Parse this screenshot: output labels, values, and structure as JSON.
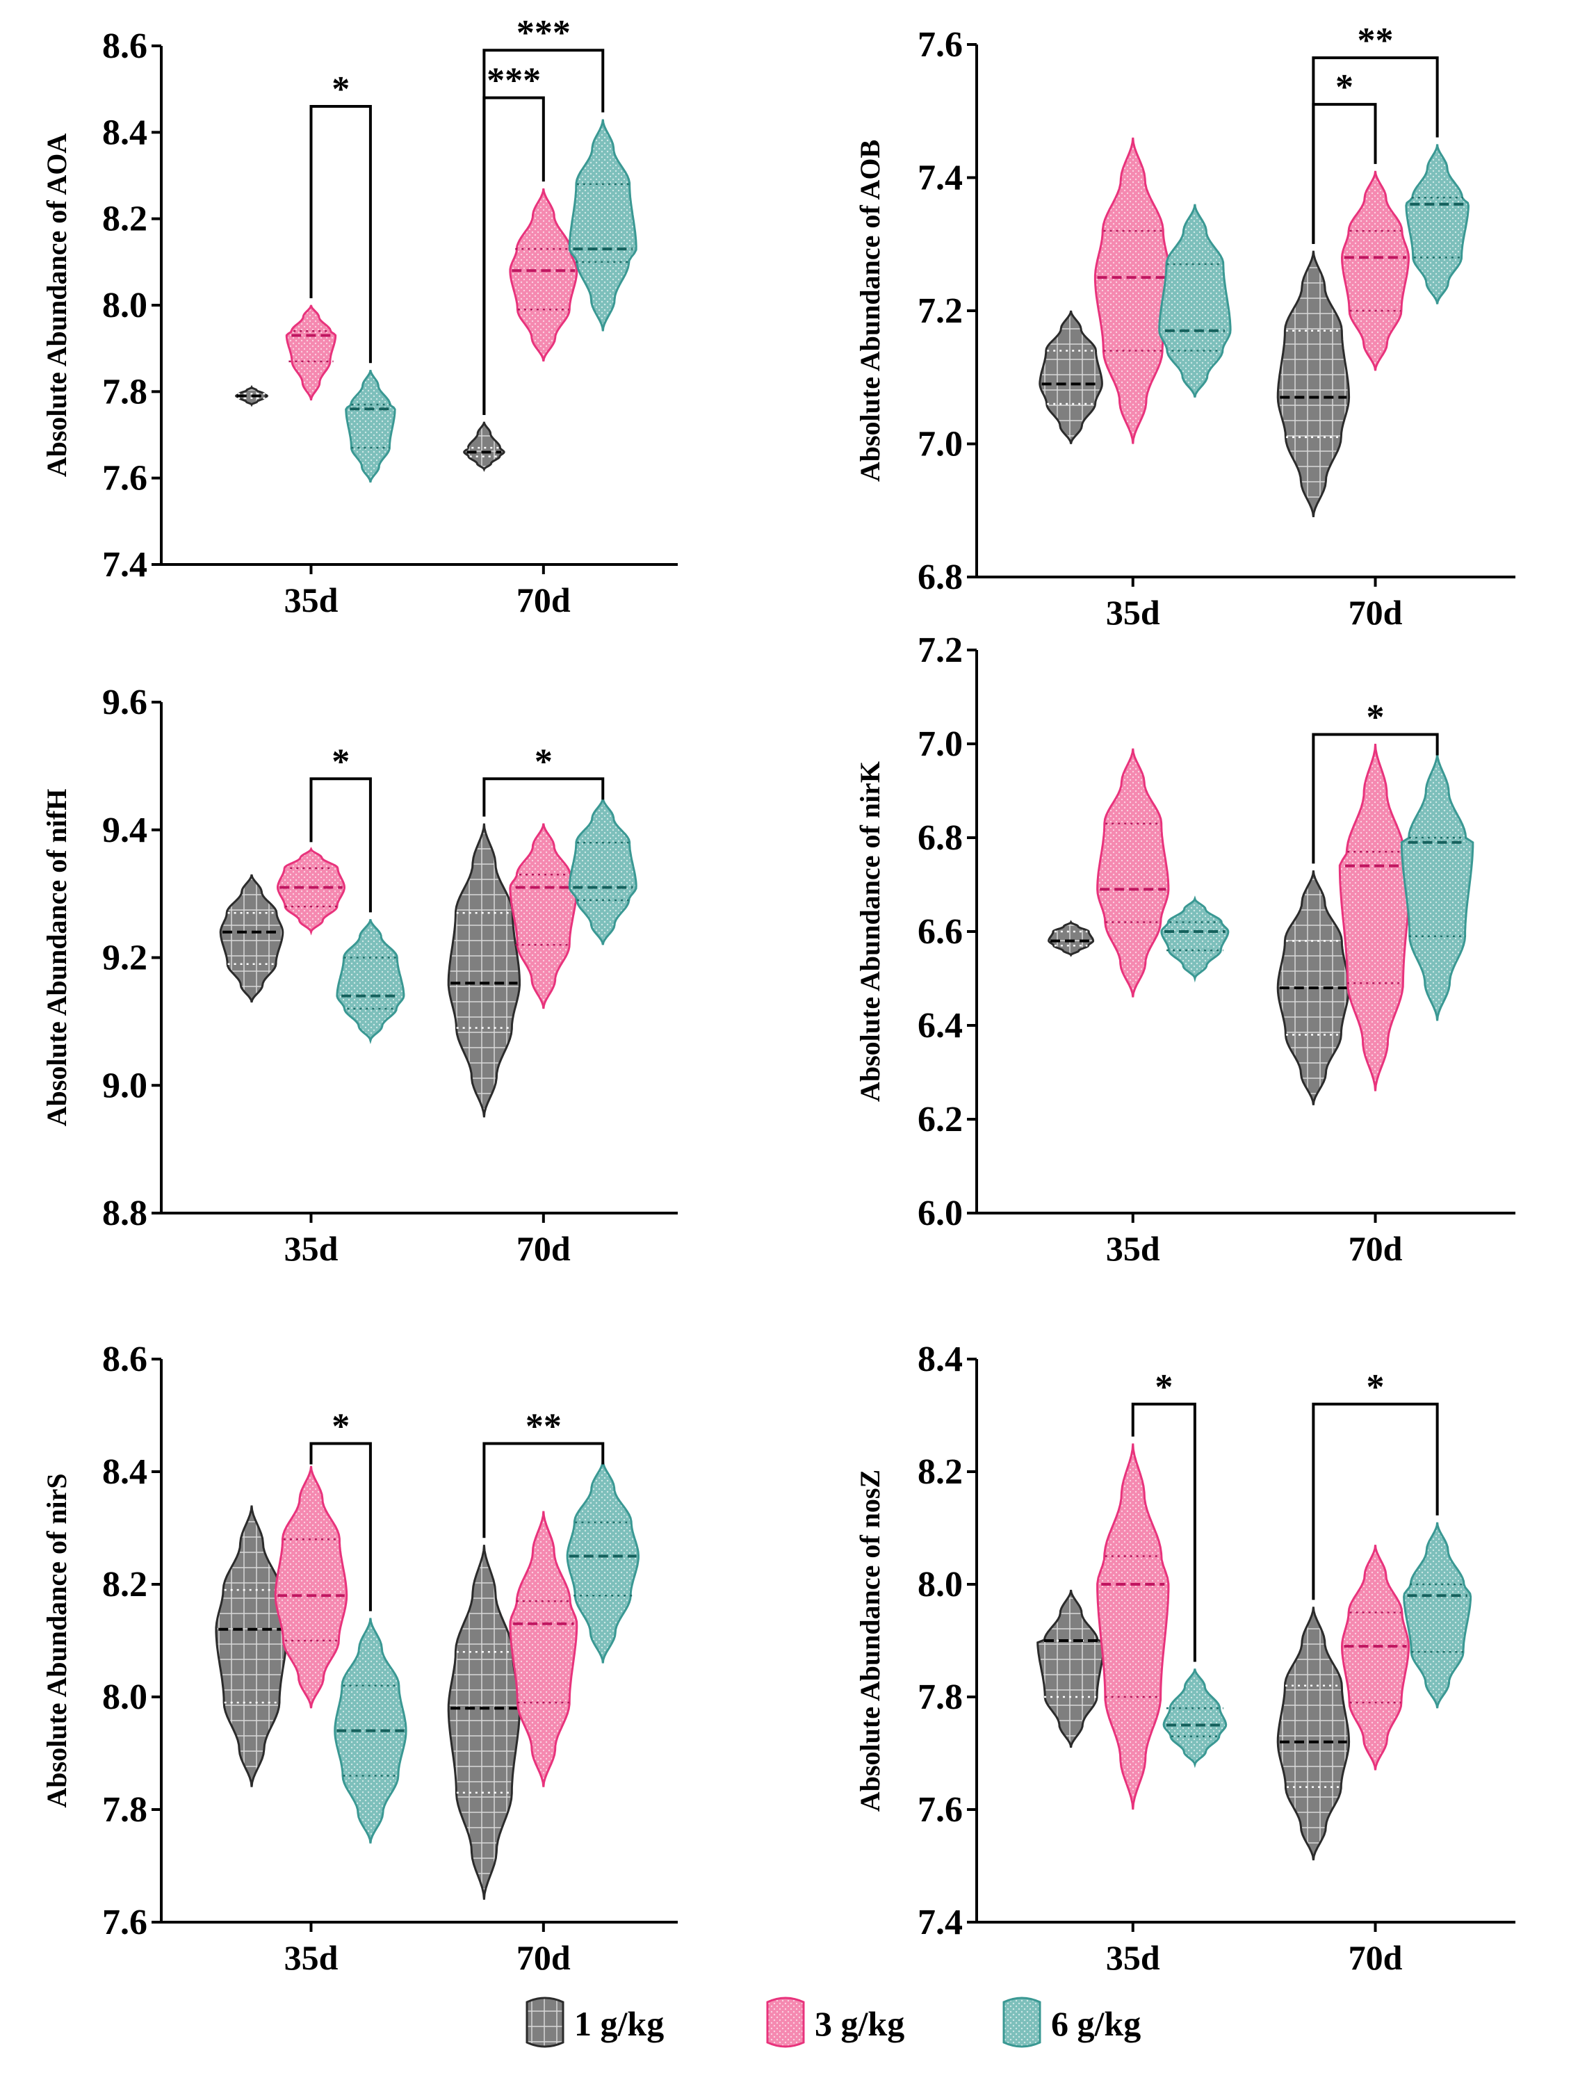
{
  "figure": {
    "legend": {
      "entries": [
        {
          "label": "1 g/kg",
          "fill": "#7f7f7f",
          "stroke": "#2b2b2b"
        },
        {
          "label": "3 g/kg",
          "fill": "#f589b0",
          "stroke": "#e8337c"
        },
        {
          "label": "6 g/kg",
          "fill": "#7dbfbb",
          "stroke": "#3a9893"
        }
      ]
    }
  },
  "chart_data": [
    {
      "type": "violin",
      "id": "aoa",
      "ylabel": "Absolute Abundance of AOA",
      "ylim": [
        7.4,
        8.6
      ],
      "yticks": [
        "7.4",
        "7.6",
        "7.8",
        "8.0",
        "8.2",
        "8.4",
        "8.6"
      ],
      "categories": [
        "35d",
        "70d"
      ],
      "series": [
        {
          "name": "1 g/kg",
          "groups": [
            {
              "min": 7.77,
              "max": 7.81,
              "q1": 7.785,
              "median": 7.79,
              "q3": 7.795,
              "width": 0.35
            },
            {
              "min": 7.62,
              "max": 7.73,
              "q1": 7.65,
              "median": 7.66,
              "q3": 7.67,
              "width": 0.45
            }
          ]
        },
        {
          "name": "3 g/kg",
          "groups": [
            {
              "min": 7.78,
              "max": 8.0,
              "q1": 7.87,
              "median": 7.93,
              "q3": 7.94,
              "width": 0.55
            },
            {
              "min": 7.87,
              "max": 8.27,
              "q1": 7.99,
              "median": 8.08,
              "q3": 8.13,
              "width": 0.75
            }
          ]
        },
        {
          "name": "6 g/kg",
          "groups": [
            {
              "min": 7.59,
              "max": 7.85,
              "q1": 7.67,
              "median": 7.76,
              "q3": 7.77,
              "width": 0.55
            },
            {
              "min": 7.94,
              "max": 8.43,
              "q1": 8.1,
              "median": 8.13,
              "q3": 8.28,
              "width": 0.75
            }
          ]
        }
      ],
      "annotations": [
        {
          "from": [
            0,
            1
          ],
          "to": [
            0,
            2
          ],
          "level": 8.46,
          "text": "*"
        },
        {
          "from": [
            1,
            0
          ],
          "to": [
            1,
            1
          ],
          "level": 8.48,
          "text": "***"
        },
        {
          "from": [
            1,
            0
          ],
          "to": [
            1,
            2
          ],
          "level": 8.59,
          "text": "***"
        }
      ]
    },
    {
      "type": "violin",
      "id": "aob",
      "ylabel": "Absolute Abundance of AOB",
      "ylim": [
        6.8,
        7.6
      ],
      "yticks": [
        "6.8",
        "7.0",
        "7.2",
        "7.4",
        "7.6"
      ],
      "categories": [
        "35d",
        "70d"
      ],
      "series": [
        {
          "name": "1 g/kg",
          "groups": [
            {
              "min": 7.0,
              "max": 7.2,
              "q1": 7.06,
              "median": 7.09,
              "q3": 7.14,
              "width": 0.7
            },
            {
              "min": 6.89,
              "max": 7.29,
              "q1": 7.01,
              "median": 7.07,
              "q3": 7.17,
              "width": 0.8
            }
          ]
        },
        {
          "name": "3 g/kg",
          "groups": [
            {
              "min": 7.0,
              "max": 7.46,
              "q1": 7.14,
              "median": 7.25,
              "q3": 7.32,
              "width": 0.85
            },
            {
              "min": 7.11,
              "max": 7.41,
              "q1": 7.2,
              "median": 7.28,
              "q3": 7.32,
              "width": 0.75
            }
          ]
        },
        {
          "name": "6 g/kg",
          "groups": [
            {
              "min": 7.07,
              "max": 7.36,
              "q1": 7.14,
              "median": 7.17,
              "q3": 7.27,
              "width": 0.8
            },
            {
              "min": 7.21,
              "max": 7.45,
              "q1": 7.28,
              "median": 7.36,
              "q3": 7.37,
              "width": 0.7
            }
          ]
        }
      ],
      "annotations": [
        {
          "from": [
            1,
            0
          ],
          "to": [
            1,
            1
          ],
          "level": 7.51,
          "text": "*"
        },
        {
          "from": [
            1,
            0
          ],
          "to": [
            1,
            2
          ],
          "level": 7.58,
          "text": "**"
        }
      ]
    },
    {
      "type": "violin",
      "id": "nifh",
      "ylabel": "Absolute Abundance of nifH",
      "ylim": [
        8.8,
        9.6
      ],
      "yticks": [
        "8.8",
        "9.0",
        "9.2",
        "9.4",
        "9.6"
      ],
      "categories": [
        "35d",
        "70d"
      ],
      "series": [
        {
          "name": "1 g/kg",
          "groups": [
            {
              "min": 9.13,
              "max": 9.33,
              "q1": 9.19,
              "median": 9.24,
              "q3": 9.27,
              "width": 0.7
            },
            {
              "min": 8.95,
              "max": 9.41,
              "q1": 9.09,
              "median": 9.16,
              "q3": 9.27,
              "width": 0.8
            }
          ]
        },
        {
          "name": "3 g/kg",
          "groups": [
            {
              "min": 9.24,
              "max": 9.37,
              "q1": 9.28,
              "median": 9.31,
              "q3": 9.34,
              "width": 0.75
            },
            {
              "min": 9.12,
              "max": 9.41,
              "q1": 9.22,
              "median": 9.31,
              "q3": 9.33,
              "width": 0.75
            }
          ]
        },
        {
          "name": "6 g/kg",
          "groups": [
            {
              "min": 9.07,
              "max": 9.26,
              "q1": 9.12,
              "median": 9.14,
              "q3": 9.2,
              "width": 0.75
            },
            {
              "min": 9.22,
              "max": 9.45,
              "q1": 9.29,
              "median": 9.31,
              "q3": 9.38,
              "width": 0.75
            }
          ]
        }
      ],
      "annotations": [
        {
          "from": [
            0,
            1
          ],
          "to": [
            0,
            2
          ],
          "level": 9.48,
          "text": "*"
        },
        {
          "from": [
            1,
            0
          ],
          "to": [
            1,
            2
          ],
          "level": 9.48,
          "text": "*"
        }
      ]
    },
    {
      "type": "violin",
      "id": "nirk",
      "ylabel": "Absolute Abundance of nirK",
      "ylim": [
        6.0,
        7.2
      ],
      "yticks": [
        "6.0",
        "6.2",
        "6.4",
        "6.6",
        "6.8",
        "7.0",
        "7.2"
      ],
      "categories": [
        "35d",
        "70d"
      ],
      "series": [
        {
          "name": "1 g/kg",
          "groups": [
            {
              "min": 6.55,
              "max": 6.62,
              "q1": 6.57,
              "median": 6.58,
              "q3": 6.6,
              "width": 0.5
            },
            {
              "min": 6.23,
              "max": 6.73,
              "q1": 6.38,
              "median": 6.48,
              "q3": 6.58,
              "width": 0.8
            }
          ]
        },
        {
          "name": "3 g/kg",
          "groups": [
            {
              "min": 6.46,
              "max": 6.99,
              "q1": 6.62,
              "median": 6.69,
              "q3": 6.83,
              "width": 0.8
            },
            {
              "min": 6.26,
              "max": 7.0,
              "q1": 6.49,
              "median": 6.74,
              "q3": 6.77,
              "width": 0.8
            }
          ]
        },
        {
          "name": "6 g/kg",
          "groups": [
            {
              "min": 6.5,
              "max": 6.67,
              "q1": 6.56,
              "median": 6.6,
              "q3": 6.62,
              "width": 0.75
            },
            {
              "min": 6.41,
              "max": 6.98,
              "q1": 6.59,
              "median": 6.79,
              "q3": 6.8,
              "width": 0.8
            }
          ]
        }
      ],
      "annotations": [
        {
          "from": [
            1,
            0
          ],
          "to": [
            1,
            2
          ],
          "level": 7.02,
          "text": "*"
        }
      ]
    },
    {
      "type": "violin",
      "id": "nirs",
      "ylabel": "Absolute Abundance of nirS",
      "ylim": [
        7.6,
        8.6
      ],
      "yticks": [
        "7.6",
        "7.8",
        "8.0",
        "8.2",
        "8.4",
        "8.6"
      ],
      "categories": [
        "35d",
        "70d"
      ],
      "series": [
        {
          "name": "1 g/kg",
          "groups": [
            {
              "min": 7.84,
              "max": 8.34,
              "q1": 7.99,
              "median": 8.12,
              "q3": 8.19,
              "width": 0.8
            },
            {
              "min": 7.64,
              "max": 8.27,
              "q1": 7.83,
              "median": 7.98,
              "q3": 8.08,
              "width": 0.8
            }
          ]
        },
        {
          "name": "3 g/kg",
          "groups": [
            {
              "min": 7.98,
              "max": 8.41,
              "q1": 8.1,
              "median": 8.18,
              "q3": 8.28,
              "width": 0.8
            },
            {
              "min": 7.84,
              "max": 8.33,
              "q1": 7.99,
              "median": 8.13,
              "q3": 8.17,
              "width": 0.75
            }
          ]
        },
        {
          "name": "6 g/kg",
          "groups": [
            {
              "min": 7.74,
              "max": 8.14,
              "q1": 7.86,
              "median": 7.94,
              "q3": 8.02,
              "width": 0.8
            },
            {
              "min": 8.06,
              "max": 8.42,
              "q1": 8.18,
              "median": 8.25,
              "q3": 8.31,
              "width": 0.8
            }
          ]
        }
      ],
      "annotations": [
        {
          "from": [
            0,
            1
          ],
          "to": [
            0,
            2
          ],
          "level": 8.45,
          "text": "*"
        },
        {
          "from": [
            1,
            0
          ],
          "to": [
            1,
            2
          ],
          "level": 8.45,
          "text": "**"
        }
      ]
    },
    {
      "type": "violin",
      "id": "nosz",
      "ylabel": "Absolute Abundance of nosZ",
      "ylim": [
        7.4,
        8.4
      ],
      "yticks": [
        "7.4",
        "7.6",
        "7.8",
        "8.0",
        "8.2",
        "8.4"
      ],
      "categories": [
        "35d",
        "70d"
      ],
      "series": [
        {
          "name": "1 g/kg",
          "groups": [
            {
              "min": 7.71,
              "max": 7.99,
              "q1": 7.8,
              "median": 7.9,
              "q3": 7.9,
              "width": 0.75
            },
            {
              "min": 7.51,
              "max": 7.96,
              "q1": 7.64,
              "median": 7.72,
              "q3": 7.82,
              "width": 0.8
            }
          ]
        },
        {
          "name": "3 g/kg",
          "groups": [
            {
              "min": 7.6,
              "max": 8.25,
              "q1": 7.8,
              "median": 8.0,
              "q3": 8.05,
              "width": 0.8
            },
            {
              "min": 7.67,
              "max": 8.07,
              "q1": 7.79,
              "median": 7.89,
              "q3": 7.95,
              "width": 0.75
            }
          ]
        },
        {
          "name": "6 g/kg",
          "groups": [
            {
              "min": 7.68,
              "max": 7.85,
              "q1": 7.73,
              "median": 7.75,
              "q3": 7.78,
              "width": 0.7
            },
            {
              "min": 7.78,
              "max": 8.11,
              "q1": 7.88,
              "median": 7.98,
              "q3": 8.0,
              "width": 0.75
            }
          ]
        }
      ],
      "annotations": [
        {
          "from": [
            0,
            1
          ],
          "to": [
            0,
            2
          ],
          "level": 8.32,
          "text": "*"
        },
        {
          "from": [
            1,
            0
          ],
          "to": [
            1,
            2
          ],
          "level": 8.32,
          "text": "*"
        }
      ]
    }
  ]
}
